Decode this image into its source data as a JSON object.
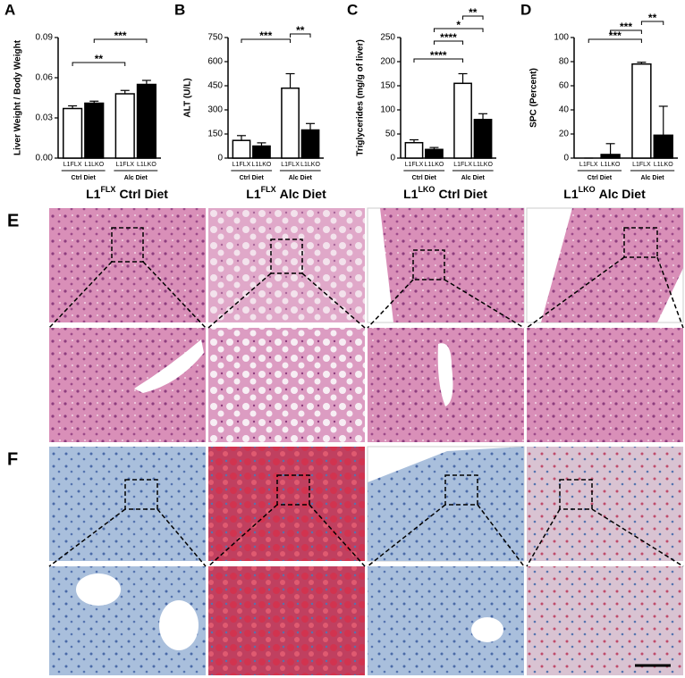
{
  "chart_data": [
    {
      "type": "bar",
      "panel": "A",
      "ylabel": "Liver Weight / Body Weight",
      "categories": [
        "L1FLX",
        "L1LKO",
        "L1FLX",
        "L1LKO"
      ],
      "groups": [
        "Ctrl Diet",
        "Alc Diet"
      ],
      "values": [
        0.037,
        0.041,
        0.048,
        0.055
      ],
      "errors": [
        0.002,
        0.0015,
        0.0025,
        0.003
      ],
      "colors": [
        "#ffffff",
        "#000000",
        "#ffffff",
        "#000000"
      ],
      "ylim": [
        0,
        0.09
      ],
      "yticks": [
        {
          "value": 0,
          "label": "0.00"
        },
        0.03,
        0.06,
        0.09
      ],
      "annotations": [
        "**",
        "***"
      ]
    },
    {
      "type": "bar",
      "panel": "B",
      "ylabel": "ALT (U/L)",
      "categories": [
        "L1FLX",
        "L1LKO",
        "L1FLX",
        "L1LKO"
      ],
      "groups": [
        "Ctrl Diet",
        "Alc Diet"
      ],
      "values": [
        110,
        75,
        435,
        175
      ],
      "errors": [
        30,
        20,
        90,
        40
      ],
      "colors": [
        "#ffffff",
        "#000000",
        "#ffffff",
        "#000000"
      ],
      "ylim": [
        0,
        750
      ],
      "yticks": [
        0,
        150,
        300,
        450,
        600,
        750
      ],
      "annotations": [
        "***",
        "**"
      ]
    },
    {
      "type": "bar",
      "panel": "C",
      "ylabel": "Triglycerides (mg/g of liver)",
      "categories": [
        "L1FLX",
        "L1LKO",
        "L1FLX",
        "L1LKO"
      ],
      "groups": [
        "Ctrl Diet",
        "Alc Diet"
      ],
      "values": [
        32,
        18,
        155,
        80
      ],
      "errors": [
        6,
        4,
        20,
        12
      ],
      "colors": [
        "#ffffff",
        "#000000",
        "#ffffff",
        "#000000"
      ],
      "ylim": [
        0,
        250
      ],
      "yticks": [
        0,
        50,
        100,
        150,
        200,
        250
      ],
      "annotations": [
        "****",
        "****",
        "*",
        "**"
      ]
    },
    {
      "type": "bar",
      "panel": "D",
      "ylabel": "SPC (Percent)",
      "categories": [
        "L1FLX",
        "L1LKO",
        "L1FLX",
        "L1LKO"
      ],
      "groups": [
        "Ctrl Diet",
        "Alc Diet"
      ],
      "values": [
        0,
        3,
        78,
        19
      ],
      "errors": [
        0,
        9,
        1.5,
        24
      ],
      "colors": [
        "#ffffff",
        "#000000",
        "#ffffff",
        "#000000"
      ],
      "ylim": [
        0,
        100
      ],
      "yticks": [
        0,
        20,
        40,
        60,
        80,
        100
      ],
      "annotations": [
        "***",
        "***",
        "**"
      ]
    }
  ],
  "histology": {
    "columns": [
      {
        "base": "L1",
        "sup": "FLX",
        "rest": "Ctrl Diet"
      },
      {
        "base": "L1",
        "sup": "FLX",
        "rest": "Alc Diet"
      },
      {
        "base": "L1",
        "sup": "LKO",
        "rest": "Ctrl Diet"
      },
      {
        "base": "L1",
        "sup": "LKO",
        "rest": "Alc Diet"
      }
    ],
    "rows": [
      {
        "label": "E"
      },
      {
        "label": "F"
      }
    ]
  }
}
